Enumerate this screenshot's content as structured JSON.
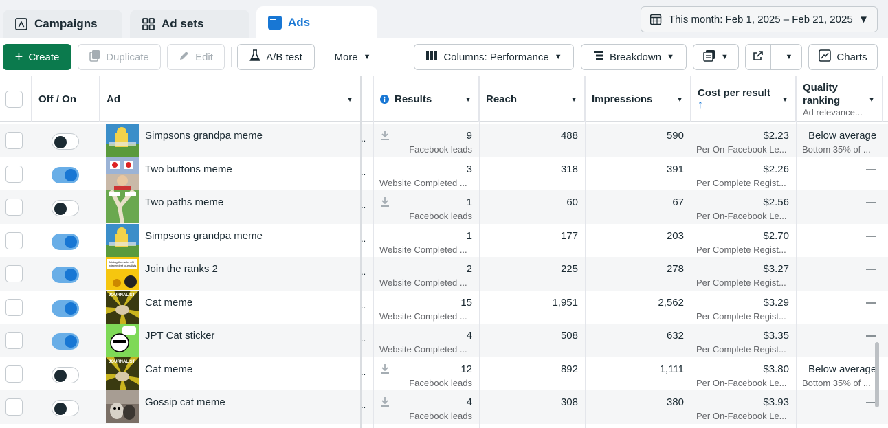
{
  "tabs": [
    {
      "label": "Campaigns",
      "icon": "campaign-flag-icon"
    },
    {
      "label": "Ad sets",
      "icon": "grid-icon"
    },
    {
      "label": "Ads",
      "icon": "ad-card-icon"
    }
  ],
  "date_range": {
    "label": "This month: Feb 1, 2025 – Feb 21, 2025",
    "icon": "calendar-icon"
  },
  "toolbar": {
    "create": "Create",
    "duplicate": "Duplicate",
    "edit": "Edit",
    "ab_test": "A/B test",
    "more": "More",
    "columns": "Columns: Performance",
    "breakdown": "Breakdown",
    "charts": "Charts"
  },
  "columns": {
    "off_on": "Off / On",
    "ad": "Ad",
    "results": "Results",
    "reach": "Reach",
    "impressions": "Impressions",
    "cost_per_result": "Cost per result",
    "quality_ranking": "Quality ranking",
    "quality_ranking_sub": "Ad relevance..."
  },
  "rows": [
    {
      "name": "Simpsons grandpa meme",
      "on": false,
      "thumb": "simpsons",
      "results": "9",
      "results_sub": "Facebook leads",
      "download": true,
      "reach": "488",
      "impressions": "590",
      "cost": "$2.23",
      "cost_sub": "Per On-Facebook Le...",
      "quality": "Below average",
      "quality_sub": "Bottom 35% of ..."
    },
    {
      "name": "Two buttons meme",
      "on": true,
      "thumb": "buttons",
      "results": "3",
      "results_sub": "Website Completed ...",
      "download": false,
      "reach": "318",
      "impressions": "391",
      "cost": "$2.26",
      "cost_sub": "Per Complete Regist...",
      "quality": "—",
      "quality_sub": ""
    },
    {
      "name": "Two paths meme",
      "on": false,
      "thumb": "paths",
      "results": "1",
      "results_sub": "Facebook leads",
      "download": true,
      "reach": "60",
      "impressions": "67",
      "cost": "$2.56",
      "cost_sub": "Per On-Facebook Le...",
      "quality": "—",
      "quality_sub": ""
    },
    {
      "name": "Simpsons grandpa meme",
      "on": true,
      "thumb": "simpsons",
      "results": "1",
      "results_sub": "Website Completed ...",
      "download": false,
      "reach": "177",
      "impressions": "203",
      "cost": "$2.70",
      "cost_sub": "Per Complete Regist...",
      "quality": "—",
      "quality_sub": ""
    },
    {
      "name": "Join the ranks 2",
      "on": true,
      "thumb": "ranks",
      "results": "2",
      "results_sub": "Website Completed ...",
      "download": false,
      "reach": "225",
      "impressions": "278",
      "cost": "$3.27",
      "cost_sub": "Per Complete Regist...",
      "quality": "—",
      "quality_sub": ""
    },
    {
      "name": "Cat meme",
      "on": true,
      "thumb": "journalist",
      "results": "15",
      "results_sub": "Website Completed ...",
      "download": false,
      "reach": "1,951",
      "impressions": "2,562",
      "cost": "$3.29",
      "cost_sub": "Per Complete Regist...",
      "quality": "—",
      "quality_sub": ""
    },
    {
      "name": "JPT Cat sticker",
      "on": true,
      "thumb": "sticker",
      "results": "4",
      "results_sub": "Website Completed ...",
      "download": false,
      "reach": "508",
      "impressions": "632",
      "cost": "$3.35",
      "cost_sub": "Per Complete Regist...",
      "quality": "—",
      "quality_sub": ""
    },
    {
      "name": "Cat meme",
      "on": false,
      "thumb": "journalist",
      "results": "12",
      "results_sub": "Facebook leads",
      "download": true,
      "reach": "892",
      "impressions": "1,111",
      "cost": "$3.80",
      "cost_sub": "Per On-Facebook Le...",
      "quality": "Below average",
      "quality_sub": "Bottom 35% of ..."
    },
    {
      "name": "Gossip cat meme",
      "on": false,
      "thumb": "gossip",
      "results": "4",
      "results_sub": "Facebook leads",
      "download": true,
      "reach": "308",
      "impressions": "380",
      "cost": "$3.93",
      "cost_sub": "Per On-Facebook Le...",
      "quality": "—",
      "quality_sub": ""
    }
  ],
  "thumb_text": {
    "simpsons": "",
    "ranks": "Joining the ranks of independent journalists",
    "journalist": "JOURNALIST"
  },
  "colors": {
    "accent": "#1877d4",
    "create_green": "#0b7a4d",
    "toggle_on": "#69aee7"
  }
}
